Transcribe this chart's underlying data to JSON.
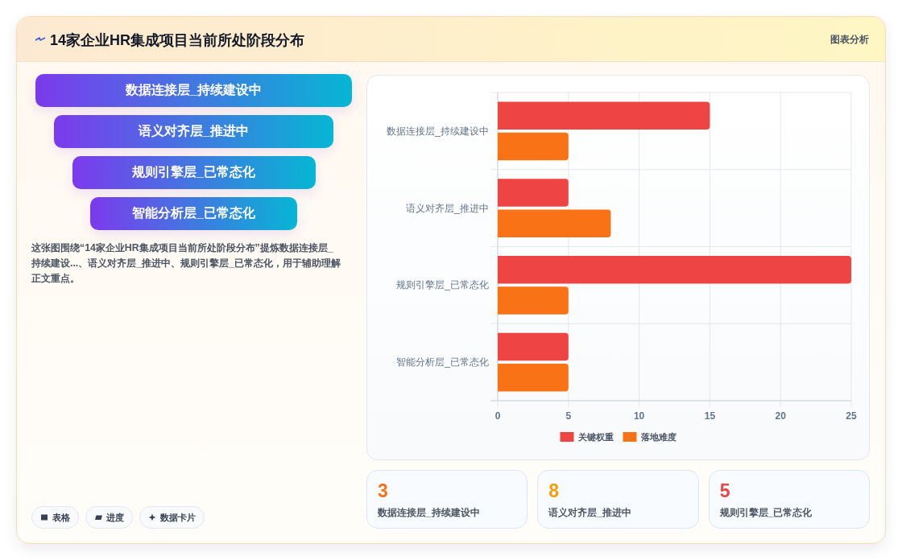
{
  "chart_data": [
    {
      "type": "other",
      "title": "14家企业HR集成项目当前所处阶段分布",
      "subtitle": "图表分析",
      "categories": [
        "数据连接层_持续建设中",
        "语义对齐层_推进中",
        "规则引擎层_已常态化",
        "智能分析层_已常态化"
      ],
      "annotations": [
        "这张图围绕“14家企业HR集成项目当前所处阶段分布”提炼数据连接层_持续建设...、语义对齐层_推进中、规则引擎层_已常态化，用于辅助理解正文重点。",
        "表格",
        "进度",
        "数据卡片"
      ]
    },
    {
      "type": "bar",
      "orientation": "horizontal",
      "categories": [
        "数据连接层_持续建设中",
        "语义对齐层_推进中",
        "规则引擎层_已常态化",
        "智能分析层_已常态化"
      ],
      "series": [
        {
          "name": "关键权重",
          "color": "#ef4444",
          "values": [
            15,
            5,
            25,
            5
          ]
        },
        {
          "name": "落地难度",
          "color": "#f97316",
          "values": [
            5,
            8,
            5,
            5
          ]
        }
      ],
      "xlim": [
        0,
        25
      ],
      "xticks": [
        0,
        5,
        10,
        15,
        20,
        25
      ],
      "grid": true,
      "legend": "bottom"
    },
    {
      "type": "other",
      "categories": [
        "数据连接层_持续建设中",
        "语义对齐层_推进中",
        "规则引擎层_已常态化"
      ],
      "values": [
        3,
        8,
        5
      ],
      "data_labels": true
    }
  ]
}
